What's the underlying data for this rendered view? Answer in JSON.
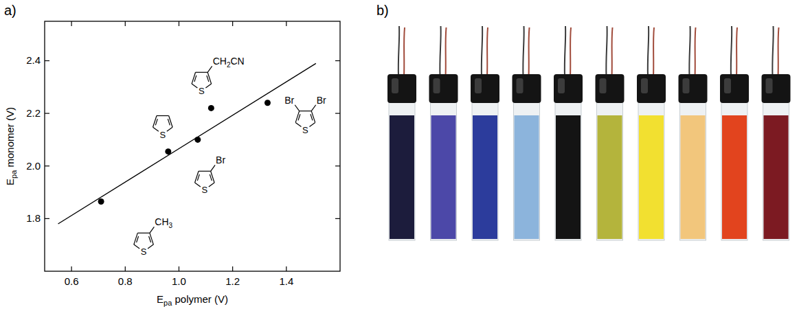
{
  "chart_data": {
    "type": "scatter",
    "panel_label": "a)",
    "x_label": {
      "text": "E",
      "subscript": "pa",
      "rest": " polymer (V)"
    },
    "y_label": {
      "text": "E",
      "subscript": "pa",
      "rest": " monomer (V)"
    },
    "x": [
      0.71,
      0.96,
      1.07,
      1.12,
      1.33
    ],
    "values": [
      1.865,
      2.055,
      2.1,
      2.22,
      2.24
    ],
    "color": "#000000",
    "marker": "circle",
    "xlim": [
      0.5,
      1.6
    ],
    "ylim": [
      1.6,
      2.55
    ],
    "xticks": [
      0.6,
      0.8,
      {
        "value": 1,
        "label": "1.0"
      },
      1.2,
      1.4
    ],
    "yticks": [
      1.8,
      {
        "value": 2,
        "label": "2.0"
      },
      2.2,
      2.4
    ],
    "fit_line": {
      "x": [
        0.55,
        1.51
      ],
      "values": [
        1.78,
        2.39
      ]
    },
    "annotations": [
      {
        "ring": "S",
        "groups": [
          "CH3"
        ]
      },
      {
        "ring": "S",
        "groups": []
      },
      {
        "ring": "S",
        "groups": [
          "Br"
        ]
      },
      {
        "ring": "S",
        "groups": [
          "CH2CN"
        ]
      },
      {
        "ring": "S",
        "groups": [
          "Br",
          "Br"
        ]
      }
    ]
  },
  "photo": {
    "panel_label": "b)",
    "electrodes": [
      {
        "color": "#1c1c3c"
      },
      {
        "color": "#4c48a8"
      },
      {
        "color": "#2c3c9c"
      },
      {
        "color": "#8cb4dc"
      },
      {
        "color": "#141414"
      },
      {
        "color": "#b4b43c"
      },
      {
        "color": "#f2e030"
      },
      {
        "color": "#f2c67c"
      },
      {
        "color": "#e2441e"
      },
      {
        "color": "#7c1a22"
      }
    ]
  }
}
